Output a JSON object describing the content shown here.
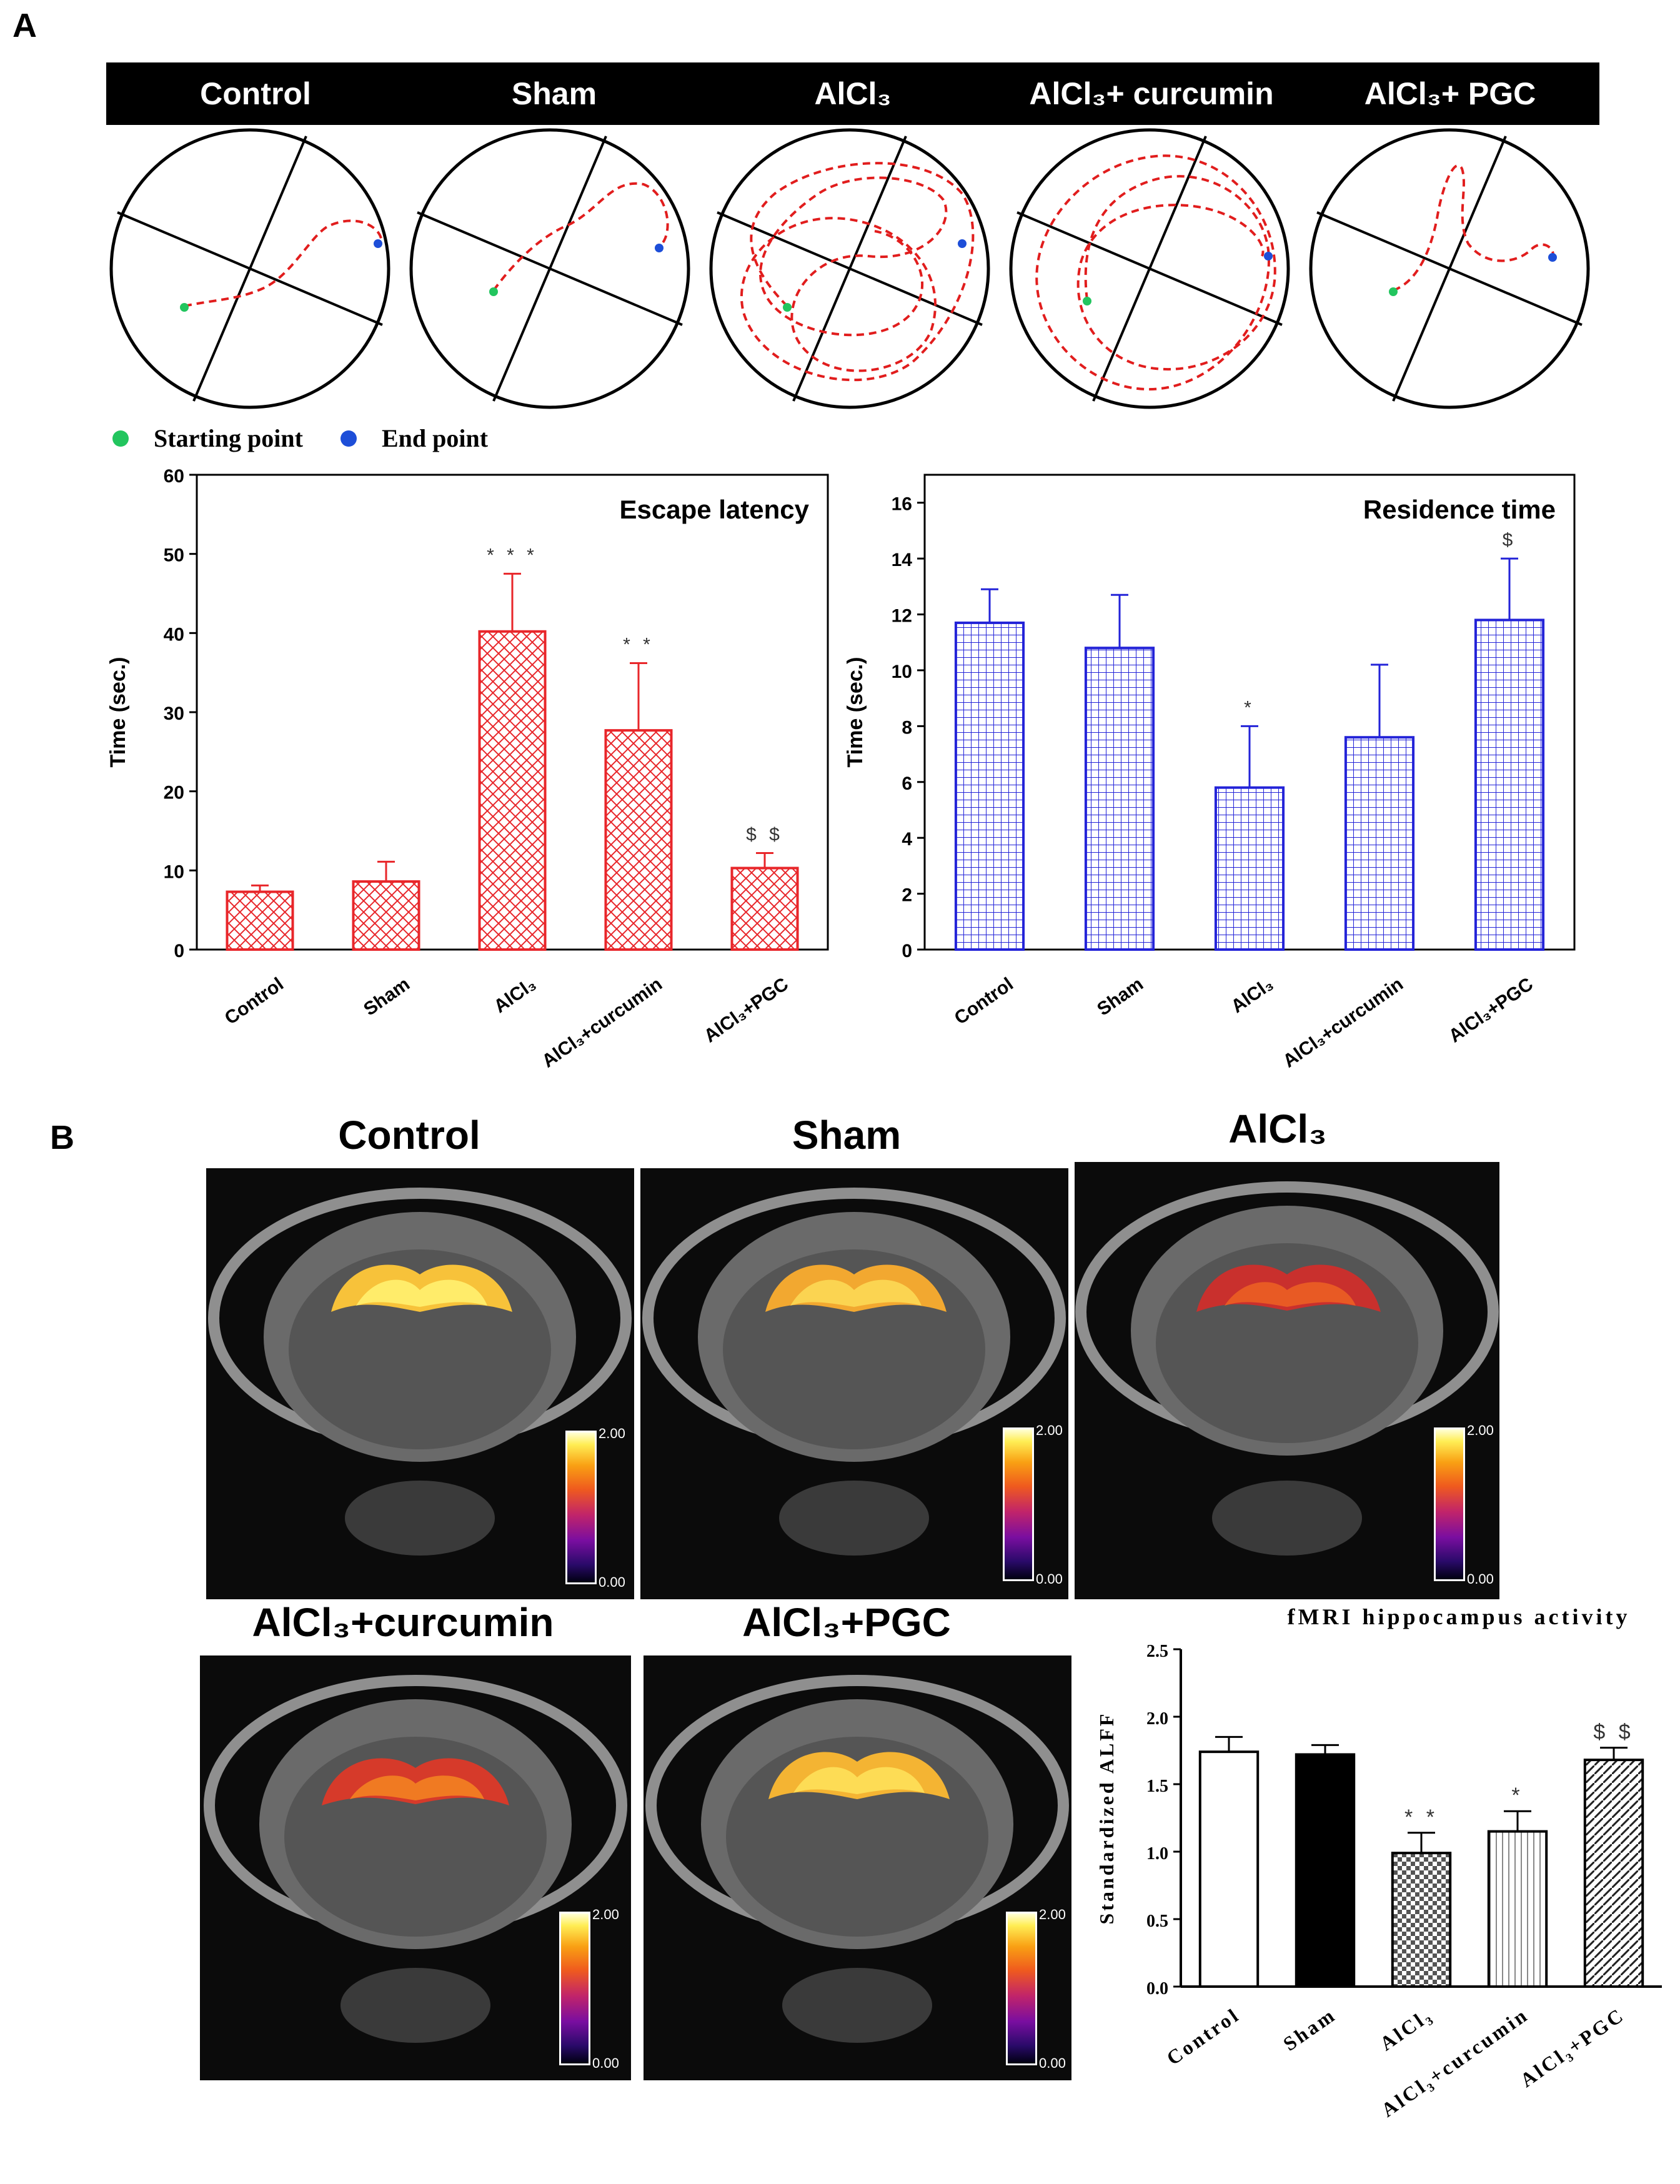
{
  "panel_a_label": "A",
  "panel_b_label": "B",
  "maze_headers": [
    "Control",
    "Sham",
    "AlCl₃",
    "AlCl₃+ curcumin",
    "AlCl₃+ PGC"
  ],
  "legend": {
    "start": "Starting point",
    "end": "End point",
    "start_color": "#22c55e",
    "end_color": "#1d4ed8",
    "path_color": "#e11d1d"
  },
  "mri": {
    "titles": [
      "Control",
      "Sham",
      "AlCl₃",
      "AlCl₃+curcumin",
      "AlCl₃+PGC"
    ],
    "colorbar_max": "2.00",
    "colorbar_min": "0.00"
  },
  "chart_data": [
    {
      "type": "bar",
      "title": "Escape latency",
      "ylabel": "Time (sec.)",
      "ylim": [
        0,
        60
      ],
      "yticks": [
        "0",
        "10",
        "20",
        "30",
        "40",
        "50",
        "60"
      ],
      "categories": [
        "Control",
        "Sham",
        "AlCl₃",
        "AlCl₃+curcumin",
        "AlCl₃+PGC"
      ],
      "values": [
        7.3,
        8.6,
        40.2,
        27.7,
        10.3
      ],
      "errors": [
        0.8,
        2.5,
        7.3,
        8.5,
        1.9
      ],
      "annotations": [
        "",
        "",
        "* * *",
        "* *",
        "$ $"
      ],
      "color": "#e8262a"
    },
    {
      "type": "bar",
      "title": "Residence time",
      "ylabel": "Time (sec.)",
      "ylim": [
        0,
        17
      ],
      "yticks": [
        "0",
        "2",
        "4",
        "6",
        "8",
        "10",
        "12",
        "14",
        "16"
      ],
      "categories": [
        "Control",
        "Sham",
        "AlCl₃",
        "AlCl₃+curcumin",
        "AlCl₃+PGC"
      ],
      "values": [
        11.7,
        10.8,
        5.8,
        7.6,
        11.8
      ],
      "errors": [
        1.2,
        1.9,
        2.2,
        2.6,
        2.2
      ],
      "annotations": [
        "",
        "",
        "*",
        "",
        "$"
      ],
      "color": "#2323d8"
    },
    {
      "type": "bar",
      "title": "fMRI hippocampus activity",
      "ylabel": "Standardized ALFF",
      "ylim": [
        0,
        2.5
      ],
      "yticks": [
        "0.0",
        "0.5",
        "1.0",
        "1.5",
        "2.0",
        "2.5"
      ],
      "categories": [
        "Control",
        "Sham",
        "AlCl₃",
        "AlCl₃+curcumin",
        "AlCl₃+PGC"
      ],
      "values": [
        1.74,
        1.72,
        0.99,
        1.15,
        1.68
      ],
      "errors": [
        0.11,
        0.07,
        0.15,
        0.15,
        0.09
      ],
      "annotations": [
        "",
        "",
        "* *",
        "*",
        "$ $"
      ],
      "color": "#000000"
    }
  ]
}
